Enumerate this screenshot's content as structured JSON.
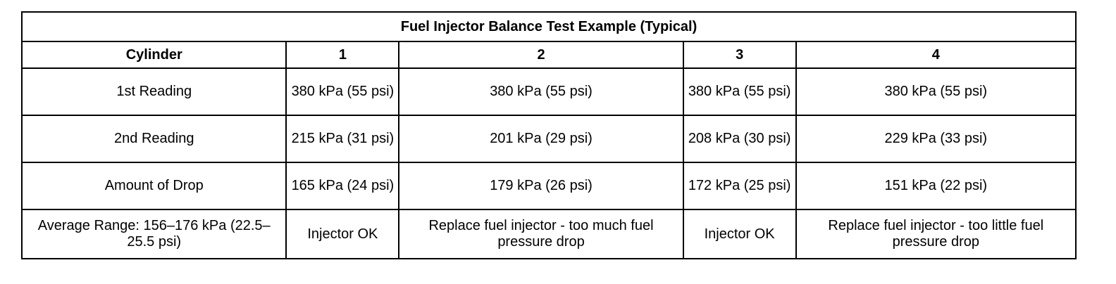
{
  "table": {
    "title": "Fuel Injector Balance Test Example (Typical)",
    "header": [
      "Cylinder",
      "1",
      "2",
      "3",
      "4"
    ],
    "rows": [
      [
        "1st Reading",
        "380 kPa (55 psi)",
        "380 kPa (55 psi)",
        "380 kPa (55 psi)",
        "380 kPa (55 psi)"
      ],
      [
        "2nd Reading",
        "215 kPa (31 psi)",
        "201 kPa (29 psi)",
        "208 kPa (30 psi)",
        "229 kPa (33 psi)"
      ],
      [
        "Amount of Drop",
        "165 kPa (24 psi)",
        "179 kPa (26 psi)",
        "172 kPa (25 psi)",
        "151 kPa (22 psi)"
      ],
      [
        "Average Range: 156–176 kPa (22.5–25.5 psi)",
        "Injector OK",
        "Replace fuel injector - too much fuel pressure drop",
        "Injector OK",
        "Replace fuel injector - too little fuel pressure drop"
      ]
    ]
  }
}
